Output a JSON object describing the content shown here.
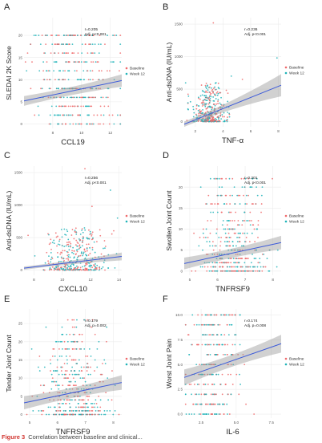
{
  "colors": {
    "baseline": "#f0686a",
    "week12": "#1fb3b8",
    "fit_line": "#3d5bd9",
    "ci_band": "#9a9a9a",
    "grid": "#ececec",
    "panel_label": "#222222",
    "caption_fig": "#d1342f"
  },
  "legend": {
    "title": "",
    "entries": [
      "Baseline",
      "Week 12"
    ]
  },
  "caption": {
    "figure_label": "Figure 3",
    "text": "Correlation between baseline and clinical..."
  },
  "chart_data": [
    {
      "type": "scatter",
      "panel": "A",
      "title": "",
      "xlabel": "CCL19",
      "ylabel": "SLEDAI 2K Score",
      "xlim": [
        6,
        12.8
      ],
      "ylim": [
        -1,
        24
      ],
      "xticks": [
        8,
        10,
        12
      ],
      "yticks": [
        0,
        5,
        10,
        15,
        20
      ],
      "annotation": [
        "r=0.205",
        "Adj. p<0.001"
      ],
      "fit": {
        "x": [
          6,
          12.8
        ],
        "y": [
          5.2,
          9.8
        ],
        "ci": [
          1.1,
          0.5,
          1.4
        ]
      },
      "cloud": {
        "x_center": 9.7,
        "x_spread": 1.4,
        "y_levels": [
          0,
          2,
          4,
          6,
          8,
          10,
          12,
          14,
          16,
          18,
          20
        ],
        "n": 400,
        "seed": 11
      },
      "legend_position": "right"
    },
    {
      "type": "scatter",
      "panel": "B",
      "title": "",
      "xlabel": "TNF-α",
      "ylabel": "Anti-dsDNA (IU/mL)",
      "xlim": [
        1.2,
        8.2
      ],
      "ylim": [
        -80,
        1600
      ],
      "xticks": [
        2,
        4,
        6,
        8
      ],
      "yticks": [
        0,
        500,
        1000,
        1500
      ],
      "annotation": [
        "r=0.236",
        "Adj. p<0.001"
      ],
      "fit": {
        "x": [
          1.2,
          8.2
        ],
        "y": [
          -40,
          560
        ],
        "ci": [
          40,
          30,
          170
        ]
      },
      "cloud": {
        "x_center": 3,
        "x_spread": 0.6,
        "y_mode": "skew",
        "y_max": 600,
        "n": 380,
        "seed": 23,
        "outliers": [
          [
            3.3,
            1520
          ],
          [
            7.9,
            980
          ],
          [
            5.4,
            650
          ],
          [
            4.6,
            700
          ]
        ]
      },
      "legend_position": "right"
    },
    {
      "type": "scatter",
      "panel": "C",
      "title": "",
      "xlabel": "CXCL10",
      "ylabel": "Anti-dsDNA (IU/mL)",
      "xlim": [
        7.3,
        14.2
      ],
      "ylim": [
        -80,
        1600
      ],
      "xticks": [
        8,
        10,
        12,
        14
      ],
      "yticks": [
        0,
        500,
        1000,
        1500
      ],
      "annotation": [
        "r=0.256",
        "Adj. p<0.001"
      ],
      "fit": {
        "x": [
          7.3,
          14.2
        ],
        "y": [
          30,
          210
        ],
        "ci": [
          25,
          15,
          60
        ]
      },
      "cloud": {
        "x_center": 11,
        "x_spread": 1.1,
        "y_mode": "skew",
        "y_max": 650,
        "n": 380,
        "seed": 37,
        "outliers": [
          [
            11.6,
            1560
          ],
          [
            13.4,
            1230
          ],
          [
            12.1,
            980
          ],
          [
            13.9,
            800
          ]
        ]
      },
      "legend_position": "right"
    },
    {
      "type": "scatter",
      "panel": "D",
      "title": "",
      "xlabel": "TNFRSF9",
      "ylabel": "Swollen Joint Count",
      "xlim": [
        4.8,
        8.3
      ],
      "ylim": [
        -1,
        25
      ],
      "xticks": [
        5,
        6,
        7,
        8
      ],
      "yticks": [
        0,
        5,
        10,
        15,
        20
      ],
      "annotation": [
        "r=0.201",
        "Adj. p<0.001"
      ],
      "fit": {
        "x": [
          4.8,
          8.3
        ],
        "y": [
          1.8,
          6.8
        ],
        "ci": [
          1.4,
          0.6,
          1.6
        ]
      },
      "cloud": {
        "x_center": 6.6,
        "x_spread": 0.6,
        "y_levels": [
          0,
          1,
          2,
          3,
          4,
          5,
          6,
          7,
          8,
          9,
          10,
          11,
          12,
          14,
          16,
          18,
          20,
          22
        ],
        "y_weight_low": true,
        "n": 420,
        "seed": 41
      },
      "legend_position": "right"
    },
    {
      "type": "scatter",
      "panel": "E",
      "title": "",
      "xlabel": "TNFRSF9",
      "ylabel": "Tender Joint Count",
      "xlim": [
        4.8,
        8.3
      ],
      "ylim": [
        -1,
        29
      ],
      "xticks": [
        5,
        6,
        7,
        8
      ],
      "yticks": [
        0,
        5,
        10,
        15,
        20,
        25
      ],
      "annotation": [
        "r=0.179",
        "Adj. p=0.002"
      ],
      "fit": {
        "x": [
          4.8,
          8.3
        ],
        "y": [
          3.2,
          8.8
        ],
        "ci": [
          1.8,
          0.8,
          2.0
        ]
      },
      "cloud": {
        "x_center": 6.6,
        "x_spread": 0.6,
        "y_levels": [
          0,
          1,
          2,
          3,
          4,
          5,
          6,
          7,
          8,
          9,
          10,
          11,
          12,
          13,
          14,
          15,
          16,
          18,
          20,
          22,
          24,
          26
        ],
        "y_weight_low": true,
        "n": 440,
        "seed": 53
      },
      "legend_position": "right"
    },
    {
      "type": "scatter",
      "panel": "F",
      "title": "",
      "xlabel": "IL-6",
      "ylabel": "Worst Joint Pain",
      "xlim": [
        1.3,
        8.2
      ],
      "ylim": [
        -0.4,
        10.6
      ],
      "xticks": [
        2.5,
        5,
        7.5
      ],
      "xticklabels": [
        "2.5",
        "5.0",
        "7.5"
      ],
      "yticks": [
        0,
        2.5,
        5,
        7.5,
        10
      ],
      "yticklabels": [
        "0.0",
        "2.5",
        "5.0",
        "7.5",
        "10.0"
      ],
      "annotation": [
        "r=0.174",
        "Adj. p=0.008"
      ],
      "fit": {
        "x": [
          1.3,
          8.2
        ],
        "y": [
          3.7,
          7.1
        ],
        "ci": [
          0.8,
          0.3,
          0.9
        ]
      },
      "cloud": {
        "x_center": 3.2,
        "x_spread": 0.9,
        "y_levels": [
          0,
          1,
          2,
          3,
          4,
          5,
          6,
          7,
          8,
          9,
          10
        ],
        "n": 320,
        "seed": 67
      },
      "legend_position": "right"
    }
  ]
}
